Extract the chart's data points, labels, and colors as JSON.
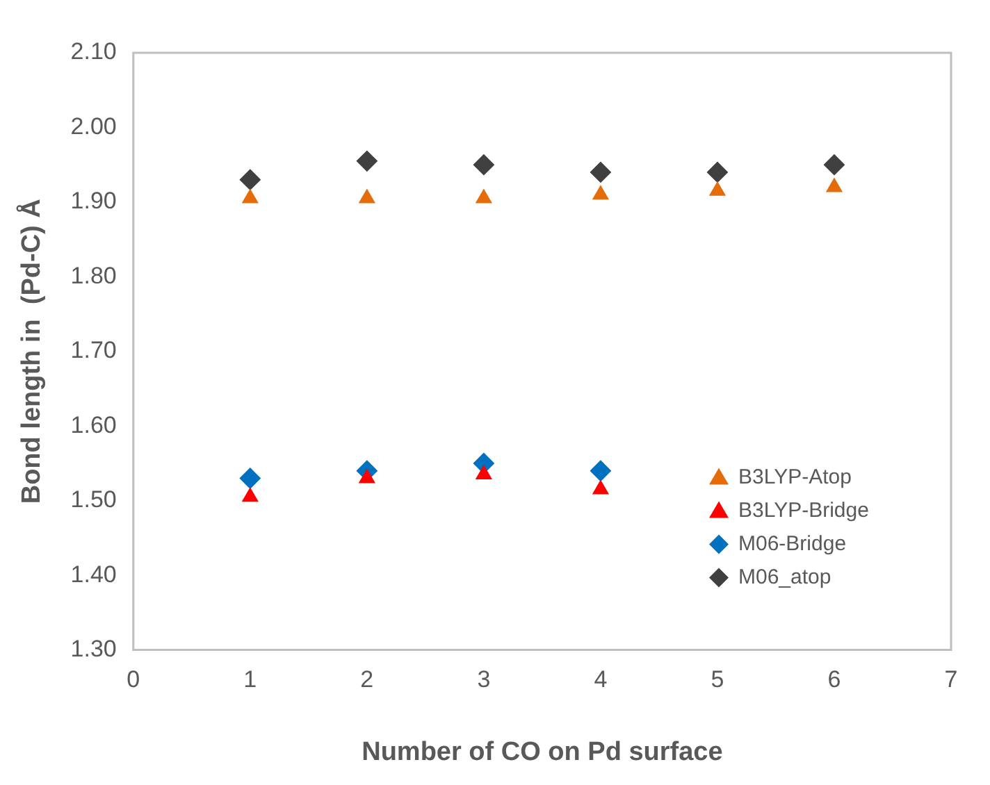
{
  "chart_data": {
    "type": "scatter",
    "xlabel": "Number of CO on Pd surface",
    "ylabel": "Bond length in  (Pd-C) Å",
    "xlim": [
      0,
      7
    ],
    "xticks": [
      0,
      1,
      2,
      3,
      4,
      5,
      6,
      7
    ],
    "ylim": [
      1.3,
      2.1
    ],
    "yticks": [
      {
        "value": 1.3,
        "label": "1.30"
      },
      {
        "value": 1.4,
        "label": "1.40"
      },
      {
        "value": 1.5,
        "label": "1.50"
      },
      {
        "value": 1.6,
        "label": "1.60"
      },
      {
        "value": 1.7,
        "label": "1.70"
      },
      {
        "value": 1.8,
        "label": "1.80"
      },
      {
        "value": 1.9,
        "label": "1.90"
      },
      {
        "value": 2.0,
        "label": "2.00"
      },
      {
        "value": 2.1,
        "label": "2.10"
      }
    ],
    "grid": false,
    "legend": "bottom right",
    "series": [
      {
        "name": "B3LYP-Atop",
        "color": "#e46c0a",
        "marker": "triangle",
        "x": [
          1,
          2,
          3,
          4,
          5,
          6
        ],
        "values": [
          1.905,
          1.905,
          1.905,
          1.91,
          1.915,
          1.92
        ]
      },
      {
        "name": "B3LYP-Bridge",
        "color": "#ff0000",
        "marker": "triangle",
        "x": [
          1,
          2,
          3,
          4
        ],
        "values": [
          1.505,
          1.53,
          1.535,
          1.515
        ]
      },
      {
        "name": "M06-Bridge",
        "color": "#0070c0",
        "marker": "diamond",
        "x": [
          1,
          2,
          3,
          4
        ],
        "values": [
          1.53,
          1.54,
          1.55,
          1.54
        ]
      },
      {
        "name": "M06_atop",
        "color": "#404040",
        "marker": "diamond",
        "x": [
          1,
          2,
          3,
          4,
          5,
          6
        ],
        "values": [
          1.93,
          1.955,
          1.95,
          1.94,
          1.94,
          1.95
        ]
      }
    ]
  }
}
